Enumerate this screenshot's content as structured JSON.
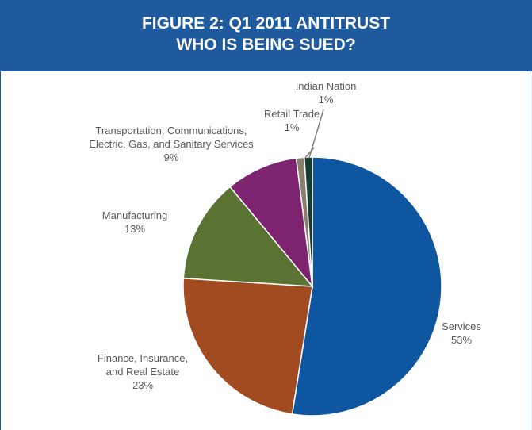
{
  "header": {
    "title_line1": "FIGURE 2: Q1 2011 ANTITRUST",
    "title_line2": "WHO IS BEING SUED?"
  },
  "chart_data": {
    "type": "pie",
    "title": "FIGURE 2: Q1 2011 ANTITRUST WHO IS BEING SUED?",
    "slices": [
      {
        "label_lines": [
          "Services"
        ],
        "pct_label": "53%",
        "value": 52.5,
        "color": "#0e56a0"
      },
      {
        "label_lines": [
          "Finance, Insurance,",
          "and Real Estate"
        ],
        "pct_label": "23%",
        "value": 23.5,
        "color": "#a24a20"
      },
      {
        "label_lines": [
          "Manufacturing"
        ],
        "pct_label": "13%",
        "value": 13.0,
        "color": "#5a7332"
      },
      {
        "label_lines": [
          "Transportation, Communications,",
          "Electric, Gas, and Sanitary Services"
        ],
        "pct_label": "9%",
        "value": 9.0,
        "color": "#7e2370"
      },
      {
        "label_lines": [
          "Retail Trade"
        ],
        "pct_label": "1%",
        "value": 1.0,
        "color": "#8a7e6d"
      },
      {
        "label_lines": [
          "Indian Nation"
        ],
        "pct_label": "1%",
        "value": 1.0,
        "color": "#163f32"
      }
    ]
  }
}
